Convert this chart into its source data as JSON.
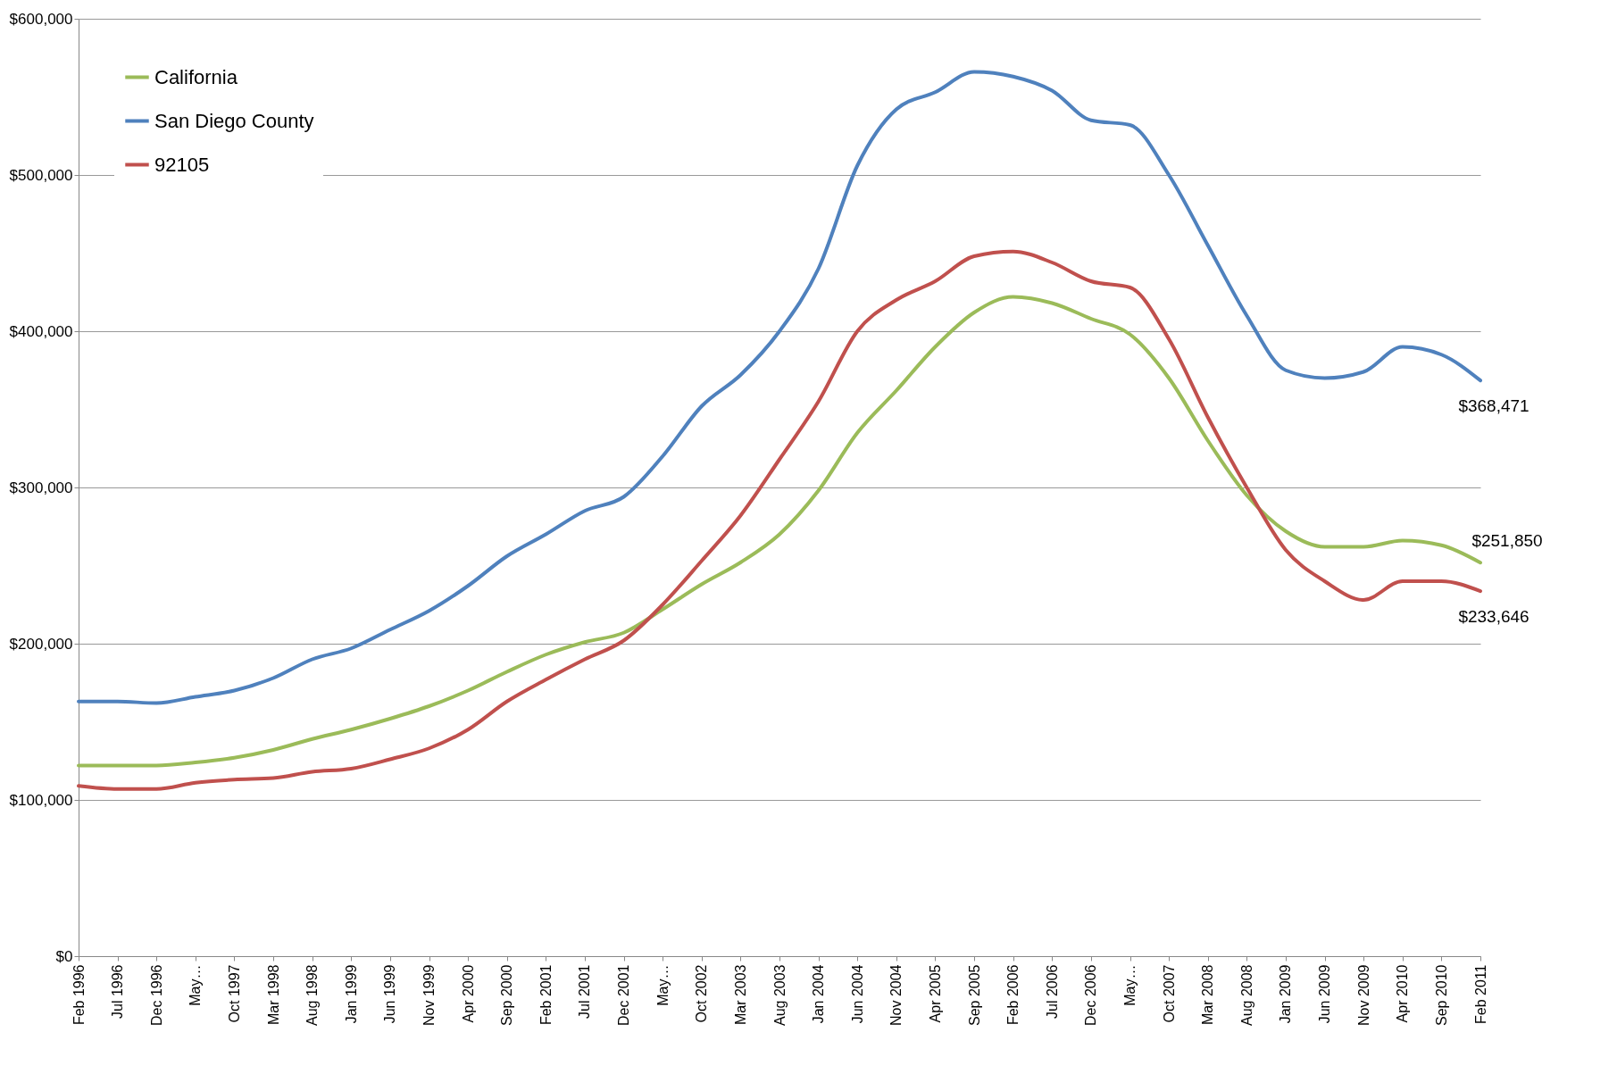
{
  "chart_data": {
    "type": "line",
    "categories": [
      "Feb 1996",
      "Jul 1996",
      "Dec 1996",
      "May…",
      "Oct 1997",
      "Mar 1998",
      "Aug 1998",
      "Jan 1999",
      "Jun 1999",
      "Nov 1999",
      "Apr 2000",
      "Sep 2000",
      "Feb 2001",
      "Jul 2001",
      "Dec 2001",
      "May…",
      "Oct 2002",
      "Mar 2003",
      "Aug 2003",
      "Jan 2004",
      "Jun 2004",
      "Nov 2004",
      "Apr 2005",
      "Sep 2005",
      "Feb 2006",
      "Jul 2006",
      "Dec 2006",
      "May…",
      "Oct 2007",
      "Mar 2008",
      "Aug 2008",
      "Jan 2009",
      "Jun 2009",
      "Nov 2009",
      "Apr 2010",
      "Sep 2010",
      "Feb 2011"
    ],
    "series": [
      {
        "name": "California",
        "color": "#9bbb59",
        "values": [
          122000,
          122000,
          122000,
          124000,
          127000,
          132000,
          139000,
          145000,
          152000,
          160000,
          170000,
          182000,
          193000,
          201000,
          207000,
          222000,
          238000,
          252000,
          270000,
          298000,
          335000,
          362000,
          390000,
          412000,
          422000,
          418000,
          408000,
          398000,
          370000,
          330000,
          295000,
          272000,
          262000,
          262000,
          266000,
          263000,
          251850
        ],
        "value_labels": [
          null,
          null,
          null,
          null,
          null,
          null,
          null,
          null,
          null,
          null,
          null,
          null,
          null,
          null,
          null,
          null,
          null,
          null,
          null,
          null,
          null,
          null,
          null,
          null,
          null,
          null,
          null,
          null,
          null,
          null,
          null,
          null,
          null,
          null,
          null,
          null,
          "$251,850"
        ]
      },
      {
        "name": "San Diego County",
        "color": "#4f81bd",
        "values": [
          163000,
          163000,
          162000,
          166000,
          170000,
          178000,
          190000,
          197000,
          209000,
          221000,
          237000,
          256000,
          270000,
          285000,
          294000,
          320000,
          352000,
          372000,
          400000,
          440000,
          506000,
          542000,
          553000,
          566000,
          563000,
          554000,
          535000,
          532000,
          500000,
          455000,
          410000,
          375000,
          370000,
          374000,
          390000,
          385000,
          368471
        ],
        "value_labels": [
          null,
          null,
          null,
          null,
          null,
          null,
          null,
          null,
          null,
          null,
          null,
          null,
          null,
          null,
          null,
          null,
          null,
          null,
          null,
          null,
          null,
          null,
          null,
          null,
          null,
          null,
          null,
          null,
          null,
          null,
          null,
          null,
          null,
          null,
          null,
          null,
          "$368,471"
        ]
      },
      {
        "name": "92105",
        "color": "#c0504d",
        "values": [
          109000,
          107000,
          107000,
          111000,
          113000,
          114000,
          118000,
          120000,
          126000,
          133000,
          145000,
          163000,
          177000,
          190000,
          202000,
          225000,
          253000,
          282000,
          318000,
          355000,
          400000,
          420000,
          432000,
          448000,
          451000,
          444000,
          432000,
          428000,
          395000,
          345000,
          300000,
          260000,
          240000,
          228000,
          240000,
          240000,
          233646
        ],
        "value_labels": [
          null,
          null,
          null,
          null,
          null,
          null,
          null,
          null,
          null,
          null,
          null,
          null,
          null,
          null,
          null,
          null,
          null,
          null,
          null,
          null,
          null,
          null,
          null,
          null,
          null,
          null,
          null,
          null,
          null,
          null,
          null,
          null,
          null,
          null,
          null,
          null,
          "$233,646"
        ]
      }
    ],
    "ylim": [
      0,
      600000
    ],
    "yticks": [
      {
        "value": 0,
        "label": "$0"
      },
      {
        "value": 100000,
        "label": "$100,000"
      },
      {
        "value": 200000,
        "label": "$200,000"
      },
      {
        "value": 300000,
        "label": "$300,000"
      },
      {
        "value": 400000,
        "label": "$400,000"
      },
      {
        "value": 500000,
        "label": "$500,000"
      },
      {
        "value": 600000,
        "label": "$600,000"
      }
    ],
    "grid": "y",
    "legend": "top left",
    "marker": "none",
    "line_style": "solid"
  }
}
